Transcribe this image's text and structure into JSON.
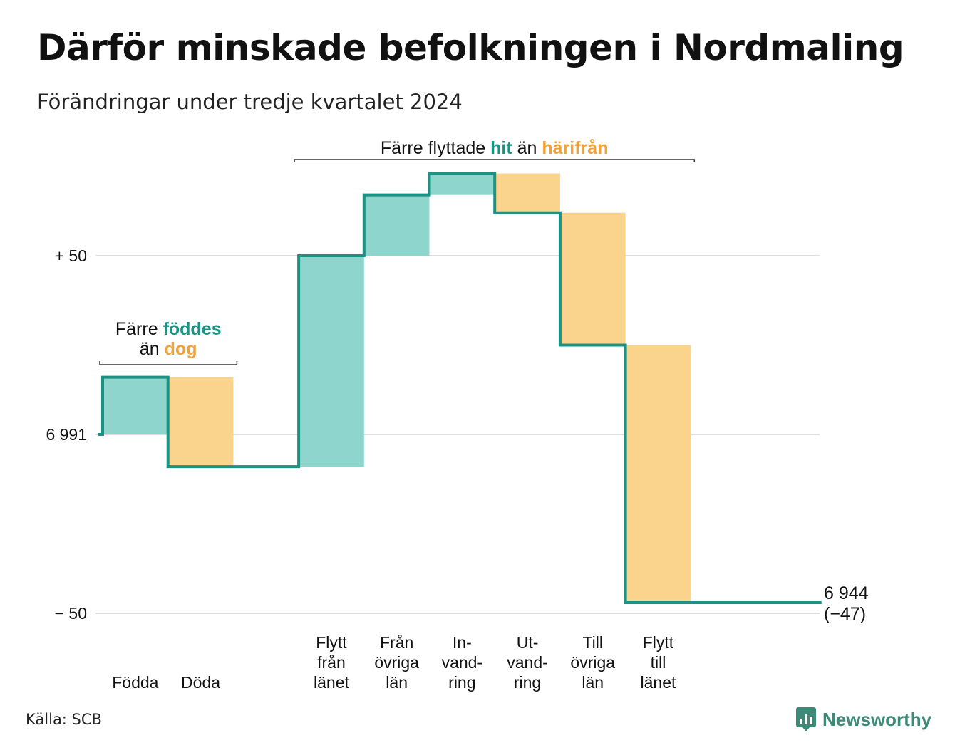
{
  "title": "Därför minskade befolkningen i Nordmaling",
  "subtitle": "Förändringar under tredje kvartalet 2024",
  "source": "Källa: SCB",
  "logo_text": "Newsworthy",
  "logo_icon": "bar-chart-speech-icon",
  "colors": {
    "increase": "#8dd5cd",
    "decrease": "#fad38c",
    "line": "#1a9384",
    "hit": "#1a9384",
    "harifran": "#f0a23a",
    "grid": "#dddddd"
  },
  "chart_data": {
    "type": "waterfall",
    "start_value": 6991,
    "start_label": "6 991",
    "end_value": 6944,
    "end_label": "6 944",
    "end_change_label": "(−47)",
    "y_axis": {
      "ticks": [
        {
          "value": 50,
          "label": "+ 50"
        },
        {
          "value": 0,
          "label": "6 991"
        },
        {
          "value": -50,
          "label": "− 50"
        }
      ],
      "range": [
        -50,
        50
      ]
    },
    "steps": [
      {
        "label": [
          "Födda"
        ],
        "change": 16
      },
      {
        "label": [
          "Döda"
        ],
        "change": -25
      },
      {
        "label": [],
        "change": 0
      },
      {
        "label": [
          "Flytt",
          "från",
          "länet"
        ],
        "change": 59
      },
      {
        "label": [
          "Från",
          "övriga",
          "län"
        ],
        "change": 17
      },
      {
        "label": [
          "In-",
          "vand-",
          "ring"
        ],
        "change": 6
      },
      {
        "label": [
          "Ut-",
          "vand-",
          "ring"
        ],
        "change": -11
      },
      {
        "label": [
          "Till",
          "övriga",
          "län"
        ],
        "change": -37
      },
      {
        "label": [
          "Flytt",
          "till",
          "länet"
        ],
        "change": -72
      },
      {
        "label": [],
        "change": 0
      },
      {
        "label": [],
        "change": 0
      }
    ],
    "annotations": [
      {
        "parts": [
          {
            "text": "Färre ",
            "style": "plain"
          },
          {
            "text": "föddes",
            "style": "hit"
          }
        ],
        "line2": [
          {
            "text": "än ",
            "style": "plain"
          },
          {
            "text": "dog",
            "style": "harifran"
          }
        ]
      },
      {
        "parts": [
          {
            "text": "Färre flyttade ",
            "style": "plain"
          },
          {
            "text": "hit",
            "style": "hit"
          },
          {
            "text": " än ",
            "style": "plain"
          },
          {
            "text": "härifrån",
            "style": "harifran"
          }
        ]
      }
    ]
  }
}
